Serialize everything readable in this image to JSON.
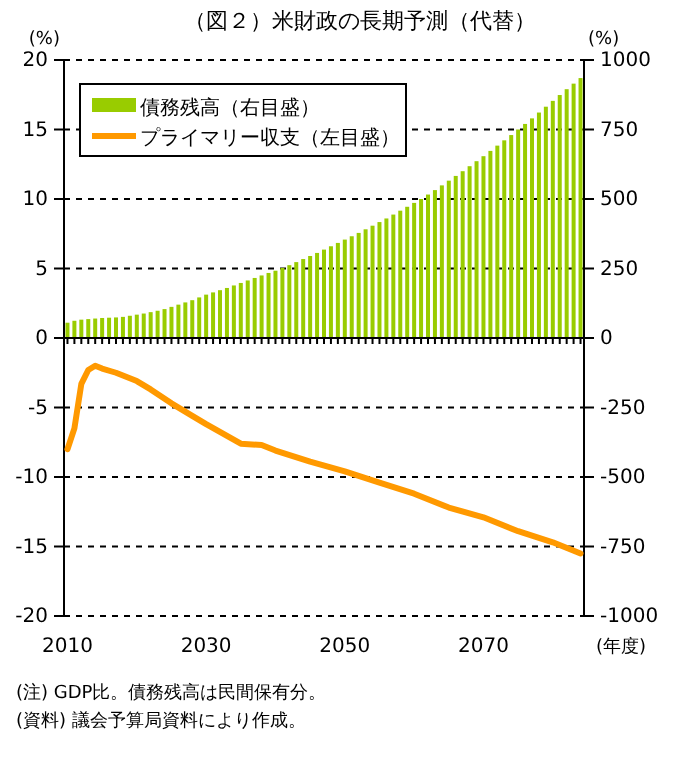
{
  "chart_data": {
    "type": "bar",
    "title": "（図２）米財政の長期予測（代替）",
    "ylabel": "(%)",
    "y2label": "(%)",
    "xlabel": "(年度)",
    "x": [
      2010,
      2011,
      2012,
      2013,
      2014,
      2015,
      2016,
      2017,
      2018,
      2019,
      2020,
      2021,
      2022,
      2023,
      2024,
      2025,
      2026,
      2027,
      2028,
      2029,
      2030,
      2031,
      2032,
      2033,
      2034,
      2035,
      2036,
      2037,
      2038,
      2039,
      2040,
      2041,
      2042,
      2043,
      2044,
      2045,
      2046,
      2047,
      2048,
      2049,
      2050,
      2051,
      2052,
      2053,
      2054,
      2055,
      2056,
      2057,
      2058,
      2059,
      2060,
      2061,
      2062,
      2063,
      2064,
      2065,
      2066,
      2067,
      2068,
      2069,
      2070,
      2071,
      2072,
      2073,
      2074,
      2075,
      2076,
      2077,
      2078,
      2079,
      2080,
      2081,
      2082,
      2083,
      2084
    ],
    "series": [
      {
        "name": "債務残高（右目盛）",
        "axis": "y2",
        "color": "#99cc00",
        "values": [
          55,
          62,
          66,
          68,
          70,
          72,
          73,
          74,
          76,
          80,
          84,
          88,
          93,
          98,
          104,
          112,
          120,
          128,
          136,
          146,
          156,
          164,
          172,
          180,
          189,
          198,
          207,
          216,
          225,
          234,
          242,
          252,
          262,
          273,
          284,
          295,
          306,
          318,
          330,
          342,
          354,
          366,
          378,
          391,
          404,
          417,
          430,
          444,
          458,
          472,
          486,
          500,
          516,
          532,
          549,
          566,
          583,
          600,
          618,
          636,
          654,
          673,
          692,
          711,
          730,
          750,
          770,
          790,
          811,
          832,
          853,
          874,
          895,
          915,
          935
        ]
      },
      {
        "name": "プライマリー収支（左目盛）",
        "type": "line",
        "axis": "y",
        "color": "#ff9900",
        "x": [
          2010,
          2011,
          2012,
          2013,
          2014,
          2015,
          2017,
          2020,
          2022,
          2025,
          2028,
          2030,
          2035,
          2038,
          2040,
          2045,
          2050,
          2055,
          2060,
          2065,
          2070,
          2075,
          2080,
          2084
        ],
        "values": [
          -8.0,
          -6.5,
          -3.3,
          -2.3,
          -2.0,
          -2.2,
          -2.5,
          -3.1,
          -3.7,
          -4.7,
          -5.6,
          -6.2,
          -7.6,
          -7.7,
          -8.1,
          -8.9,
          -9.6,
          -10.4,
          -11.2,
          -12.2,
          -12.9,
          -13.9,
          -14.7,
          -15.5
        ]
      }
    ],
    "xlim": [
      2009.5,
      2084.5
    ],
    "xticks": [
      {
        "value": 2010,
        "label": "2010"
      },
      {
        "value": 2011,
        "label": null
      },
      {
        "value": 2012,
        "label": null
      },
      {
        "value": 2013,
        "label": null
      },
      {
        "value": 2014,
        "label": null
      },
      {
        "value": 2015,
        "label": null
      },
      {
        "value": 2016,
        "label": null
      },
      {
        "value": 2017,
        "label": null
      },
      {
        "value": 2018,
        "label": null
      },
      {
        "value": 2019,
        "label": null
      },
      {
        "value": 2020,
        "label": null
      },
      {
        "value": 2021,
        "label": null
      },
      {
        "value": 2022,
        "label": null
      },
      {
        "value": 2023,
        "label": null
      },
      {
        "value": 2024,
        "label": null
      },
      {
        "value": 2025,
        "label": null
      },
      {
        "value": 2026,
        "label": null
      },
      {
        "value": 2027,
        "label": null
      },
      {
        "value": 2028,
        "label": null
      },
      {
        "value": 2029,
        "label": null
      },
      {
        "value": 2030,
        "label": "2030"
      },
      {
        "value": 2031,
        "label": null
      },
      {
        "value": 2032,
        "label": null
      },
      {
        "value": 2033,
        "label": null
      },
      {
        "value": 2034,
        "label": null
      },
      {
        "value": 2035,
        "label": null
      },
      {
        "value": 2036,
        "label": null
      },
      {
        "value": 2037,
        "label": null
      },
      {
        "value": 2038,
        "label": null
      },
      {
        "value": 2039,
        "label": null
      },
      {
        "value": 2040,
        "label": null
      },
      {
        "value": 2041,
        "label": null
      },
      {
        "value": 2042,
        "label": null
      },
      {
        "value": 2043,
        "label": null
      },
      {
        "value": 2044,
        "label": null
      },
      {
        "value": 2045,
        "label": null
      },
      {
        "value": 2046,
        "label": null
      },
      {
        "value": 2047,
        "label": null
      },
      {
        "value": 2048,
        "label": null
      },
      {
        "value": 2049,
        "label": null
      },
      {
        "value": 2050,
        "label": "2050"
      },
      {
        "value": 2051,
        "label": null
      },
      {
        "value": 2052,
        "label": null
      },
      {
        "value": 2053,
        "label": null
      },
      {
        "value": 2054,
        "label": null
      },
      {
        "value": 2055,
        "label": null
      },
      {
        "value": 2056,
        "label": null
      },
      {
        "value": 2057,
        "label": null
      },
      {
        "value": 2058,
        "label": null
      },
      {
        "value": 2059,
        "label": null
      },
      {
        "value": 2060,
        "label": null
      },
      {
        "value": 2061,
        "label": null
      },
      {
        "value": 2062,
        "label": null
      },
      {
        "value": 2063,
        "label": null
      },
      {
        "value": 2064,
        "label": null
      },
      {
        "value": 2065,
        "label": null
      },
      {
        "value": 2066,
        "label": null
      },
      {
        "value": 2067,
        "label": null
      },
      {
        "value": 2068,
        "label": null
      },
      {
        "value": 2069,
        "label": null
      },
      {
        "value": 2070,
        "label": "2070"
      },
      {
        "value": 2071,
        "label": null
      },
      {
        "value": 2072,
        "label": null
      },
      {
        "value": 2073,
        "label": null
      },
      {
        "value": 2074,
        "label": null
      },
      {
        "value": 2075,
        "label": null
      },
      {
        "value": 2076,
        "label": null
      },
      {
        "value": 2077,
        "label": null
      },
      {
        "value": 2078,
        "label": null
      },
      {
        "value": 2079,
        "label": null
      },
      {
        "value": 2080,
        "label": null
      },
      {
        "value": 2081,
        "label": null
      },
      {
        "value": 2082,
        "label": null
      },
      {
        "value": 2083,
        "label": null
      },
      {
        "value": 2084,
        "label": null
      }
    ],
    "ylim": [
      -20,
      20
    ],
    "yticks": [
      -20,
      -15,
      -10,
      -5,
      0,
      5,
      10,
      15,
      20
    ],
    "y2lim": [
      -1000,
      1000
    ],
    "y2ticks": [
      -1000,
      -750,
      -500,
      -250,
      0,
      250,
      500,
      750,
      1000
    ],
    "grid": "y",
    "legend": "top left",
    "marker": "none",
    "line_style": "solid",
    "annotations": [
      "(注) GDP比。債務残高は民間保有分。",
      "(資料) 議会予算局資料により作成。"
    ]
  }
}
